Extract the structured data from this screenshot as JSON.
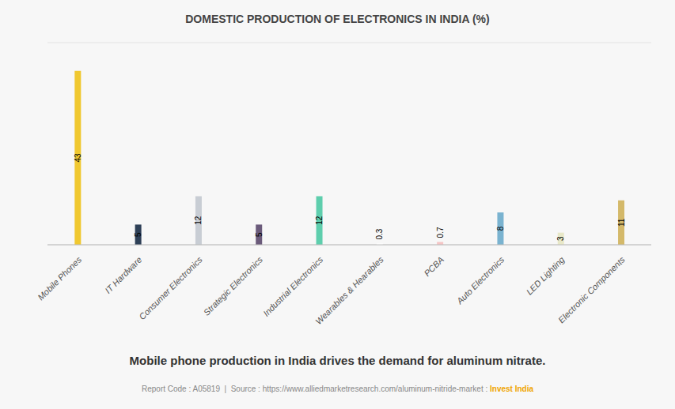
{
  "chart_data": {
    "type": "bar",
    "title": "DOMESTIC PRODUCTION OF ELECTRONICS IN INDIA (%)",
    "subtitle": "Mobile phone production in India drives the demand for aluminum nitrate.",
    "annotations": [
      {
        "text": "Report Code : A05819  |  Source : https://www.alliedmarketresearch.com/aluminum-nitride-market : ",
        "color": "#888888"
      },
      {
        "text": "Invest India",
        "color": "#f0a500"
      }
    ],
    "categories": [
      "Mobile Phones",
      "IT Hardware",
      "Consumer Electronics",
      "Strategic Electronics",
      "Industrial Electronics",
      "Wearables & Hearables",
      "PCBA",
      "Auto Electronics",
      "LED Lighting",
      "Electronic Components"
    ],
    "values": [
      43,
      5,
      12,
      5,
      12,
      0.3,
      0.7,
      8,
      3,
      11
    ],
    "colors": [
      "#f0c830",
      "#2e4057",
      "#c8cdd4",
      "#6b5b7b",
      "#5ecead",
      "#ffffff",
      "#f5c5c5",
      "#7ab3d0",
      "#e8e8c8",
      "#d4b96a"
    ],
    "ylim": [
      0,
      50
    ],
    "yticks": [
      0,
      10,
      20,
      30,
      40,
      50
    ],
    "grid": true,
    "data_labels": true,
    "tick_labels": "x"
  }
}
